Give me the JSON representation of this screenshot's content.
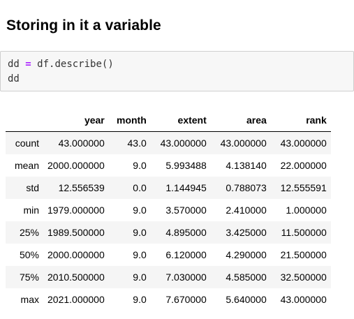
{
  "heading": "Storing in it a variable",
  "code": {
    "line1_var": "dd",
    "line1_op": "=",
    "line1_expr": "df.describe()",
    "line2": "dd"
  },
  "table": {
    "index_header": "",
    "columns": [
      "year",
      "month",
      "extent",
      "area",
      "rank"
    ],
    "rows": [
      {
        "label": "count",
        "values": [
          "43.000000",
          "43.0",
          "43.000000",
          "43.000000",
          "43.000000"
        ]
      },
      {
        "label": "mean",
        "values": [
          "2000.000000",
          "9.0",
          "5.993488",
          "4.138140",
          "22.000000"
        ]
      },
      {
        "label": "std",
        "values": [
          "12.556539",
          "0.0",
          "1.144945",
          "0.788073",
          "12.555591"
        ]
      },
      {
        "label": "min",
        "values": [
          "1979.000000",
          "9.0",
          "3.570000",
          "2.410000",
          "1.000000"
        ]
      },
      {
        "label": "25%",
        "values": [
          "1989.500000",
          "9.0",
          "4.895000",
          "3.425000",
          "11.500000"
        ]
      },
      {
        "label": "50%",
        "values": [
          "2000.000000",
          "9.0",
          "6.120000",
          "4.290000",
          "21.500000"
        ]
      },
      {
        "label": "75%",
        "values": [
          "2010.500000",
          "9.0",
          "7.030000",
          "4.585000",
          "32.500000"
        ]
      },
      {
        "label": "max",
        "values": [
          "2021.000000",
          "9.0",
          "7.670000",
          "5.640000",
          "43.000000"
        ]
      }
    ]
  }
}
